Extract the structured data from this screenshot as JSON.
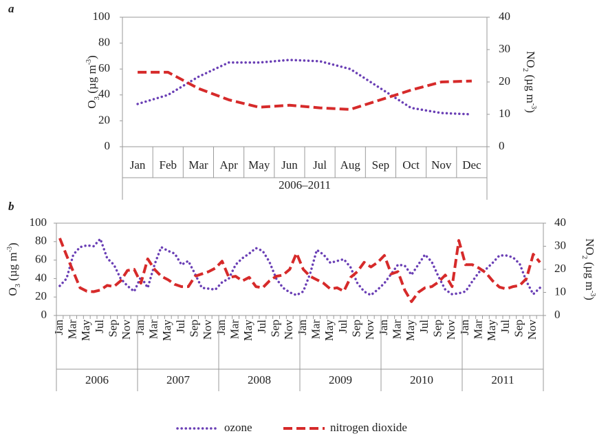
{
  "chart_data": [
    {
      "type": "line",
      "panel_label": "a",
      "categories": [
        "Jan",
        "Feb",
        "Mar",
        "Apr",
        "May",
        "Jun",
        "Jul",
        "Aug",
        "Sep",
        "Oct",
        "Nov",
        "Dec"
      ],
      "groups": [
        "2006–2011"
      ],
      "series": [
        {
          "name": "ozone",
          "color": "#6a3fb5",
          "axis": "y",
          "values": [
            33,
            40,
            54,
            65,
            65,
            67,
            66,
            60,
            45,
            30,
            26,
            25
          ]
        },
        {
          "name": "nitrogen dioxide",
          "color": "#d62a2a",
          "axis": "y2",
          "values": [
            23,
            23,
            18,
            14.5,
            12.2,
            12.8,
            12,
            11.5,
            14.5,
            17.5,
            20,
            20.3
          ]
        }
      ],
      "ylim": [
        0,
        100
      ],
      "yticks": [
        0,
        20,
        40,
        60,
        80,
        100
      ],
      "y2lim": [
        0,
        40
      ],
      "y2ticks": [
        0,
        10,
        20,
        30,
        40
      ],
      "ylabel": [
        "O",
        "3",
        " (µg m",
        "-3",
        ")"
      ],
      "y2label": [
        "NO",
        "2",
        " (µg m",
        "-3",
        ")"
      ]
    },
    {
      "type": "line",
      "panel_label": "b",
      "categories": [
        "Jan",
        null,
        "Mar",
        null,
        "May",
        null,
        "Jul",
        null,
        "Sep",
        null,
        "Nov",
        null,
        "Jan",
        null,
        "Mar",
        null,
        "May",
        null,
        "Jul",
        null,
        "Sep",
        null,
        "Nov",
        null,
        "Jan",
        null,
        "Mar",
        null,
        "May",
        null,
        "Jul",
        null,
        "Sep",
        null,
        "Nov",
        null,
        "Jan",
        null,
        "Mar",
        null,
        "May",
        null,
        "Jul",
        null,
        "Sep",
        null,
        "Nov",
        null,
        "Jan",
        null,
        "Mar",
        null,
        "May",
        null,
        "Jul",
        null,
        "Sep",
        null,
        "Nov",
        null,
        "Jan",
        null,
        "Mar",
        null,
        "May",
        null,
        "Jul",
        null,
        "Sep",
        null,
        "Nov",
        null
      ],
      "groups": [
        "2006",
        "2007",
        "2008",
        "2009",
        "2010",
        "2011"
      ],
      "series": [
        {
          "name": "ozone",
          "color": "#6a3fb5",
          "axis": "y",
          "values": [
            32,
            40,
            66,
            74,
            76,
            75,
            83,
            62,
            55,
            40,
            32,
            26,
            42,
            30,
            55,
            74,
            70,
            67,
            55,
            59,
            45,
            30,
            29,
            28,
            36,
            40,
            55,
            62,
            67,
            73,
            70,
            58,
            40,
            30,
            25,
            22,
            26,
            45,
            71,
            66,
            57,
            59,
            61,
            52,
            35,
            26,
            22,
            28,
            35,
            45,
            55,
            54,
            44,
            55,
            66,
            58,
            42,
            28,
            23,
            24,
            26,
            37,
            47,
            50,
            57,
            65,
            65,
            63,
            56,
            37,
            23,
            30
          ]
        },
        {
          "name": "nitrogen dioxide",
          "color": "#d62a2a",
          "axis": "y2",
          "values": [
            33.5,
            26,
            19,
            12,
            10.5,
            10.3,
            11,
            13,
            12.5,
            15,
            19.5,
            20,
            14,
            24.5,
            20,
            17,
            15.5,
            13.5,
            12.5,
            12.5,
            17,
            18,
            19,
            20.5,
            23.5,
            16.5,
            17,
            15,
            16.5,
            12.5,
            12,
            15,
            17,
            17.5,
            20,
            27,
            20,
            17,
            15.5,
            14,
            11.5,
            12,
            10.5,
            16.5,
            19,
            23,
            21,
            23,
            26,
            18,
            19,
            11,
            6,
            10,
            12,
            12.5,
            14.5,
            17.5,
            12.5,
            32.5,
            22,
            22,
            20.5,
            18.5,
            15,
            12.3,
            11.5,
            12.5,
            13,
            16,
            26.5,
            23
          ]
        }
      ],
      "ylim": [
        0,
        100
      ],
      "yticks": [
        0,
        20,
        40,
        60,
        80,
        100
      ],
      "y2lim": [
        0,
        40
      ],
      "y2ticks": [
        0,
        10,
        20,
        30,
        40
      ],
      "ylabel": [
        "O",
        "3",
        " (µg m",
        "-3",
        ")"
      ],
      "y2label": [
        "NO",
        "2",
        " (µg m",
        "-3",
        ")"
      ]
    }
  ]
}
